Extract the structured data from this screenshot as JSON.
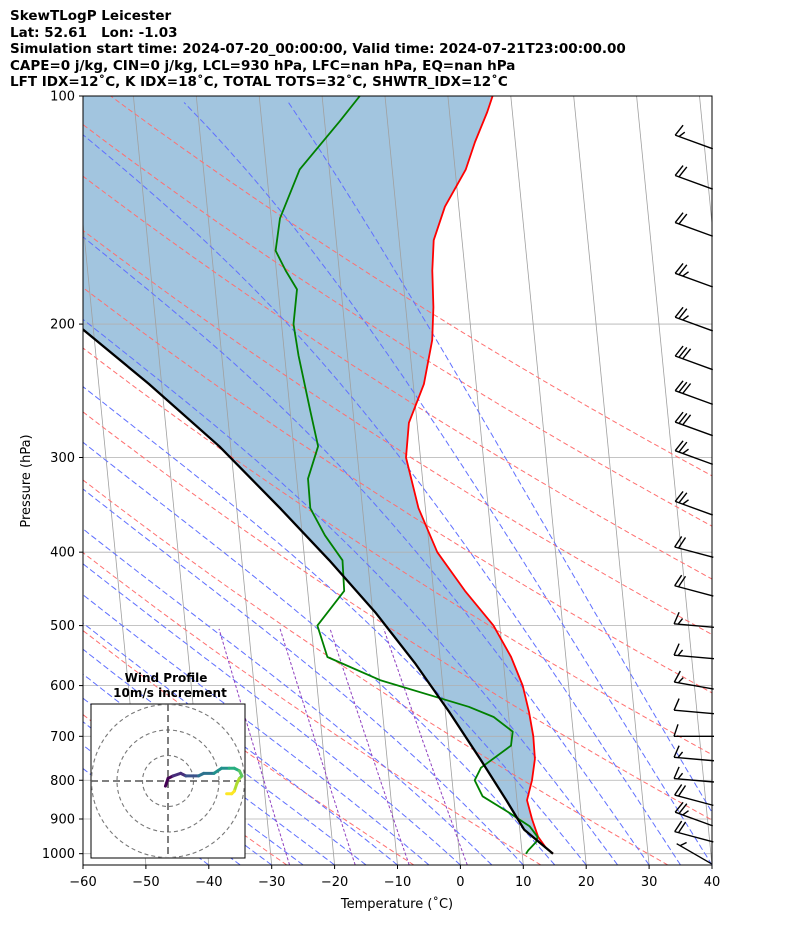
{
  "header": {
    "line1": "SkewTLogP Leicester",
    "line2": "Lat: 52.61   Lon: -1.03",
    "line3": "Simulation start time: 2024-07-20_00:00:00, Valid time: 2024-07-21T23:00:00.00",
    "line4": "CAPE=0 j/kg, CIN=0 j/kg, LCL=930 hPa, LFC=nan hPa, EQ=nan hPa",
    "line5": "LFT IDX=12˚C, K IDX=18˚C, TOTAL TOTS=32˚C, SHWTR_IDX=12˚C"
  },
  "chart_data": {
    "type": "line",
    "title": "SkewTLogP Leicester",
    "xlabel": "Temperature (˚C)",
    "ylabel": "Pressure (hPa)",
    "xlim": [
      -60,
      40
    ],
    "ylim": [
      1035,
      100
    ],
    "y_scale": "log",
    "skewed_isotherms": true,
    "grid": true,
    "x_ticks": [
      -60,
      -50,
      -40,
      -30,
      -20,
      -10,
      0,
      10,
      20,
      30,
      40
    ],
    "y_ticks": [
      100,
      200,
      300,
      400,
      500,
      600,
      700,
      800,
      900,
      1000
    ],
    "colors": {
      "temperature": "#ff0000",
      "dewpoint": "#008000",
      "parcel": "#000000",
      "cape_fill": "#a2c5df",
      "dry_adiabats": "#ff6f6f",
      "moist_adiabats": "#6070ff",
      "mixing_ratio": "#9040c0",
      "isotherms": "#a0a0a0"
    },
    "series": [
      {
        "name": "Temperature",
        "points": [
          [
            14.9,
            1000
          ],
          [
            13.8,
            980
          ],
          [
            12.8,
            950
          ],
          [
            12.1,
            900
          ],
          [
            11.6,
            850
          ],
          [
            12.7,
            800
          ],
          [
            13.5,
            750
          ],
          [
            13.6,
            700
          ],
          [
            13.3,
            650
          ],
          [
            12.7,
            600
          ],
          [
            11.3,
            550
          ],
          [
            9.0,
            500
          ],
          [
            5.0,
            450
          ],
          [
            1.2,
            400
          ],
          [
            -1.1,
            350
          ],
          [
            -2.3,
            300
          ],
          [
            -1.3,
            270
          ],
          [
            1.7,
            240
          ],
          [
            3.7,
            210
          ],
          [
            4.4,
            190
          ],
          [
            4.8,
            170
          ],
          [
            5.5,
            155
          ],
          [
            7.8,
            140
          ],
          [
            11.7,
            125
          ],
          [
            13.6,
            115
          ],
          [
            16.0,
            105
          ],
          [
            17.1,
            100
          ]
        ]
      },
      {
        "name": "Dewpoint",
        "points": [
          [
            10.6,
            1000
          ],
          [
            11.0,
            990
          ],
          [
            12.4,
            965
          ],
          [
            12.7,
            950
          ],
          [
            11.6,
            920
          ],
          [
            8.3,
            880
          ],
          [
            4.6,
            840
          ],
          [
            3.6,
            800
          ],
          [
            4.8,
            770
          ],
          [
            9.9,
            720
          ],
          [
            10.4,
            690
          ],
          [
            7.6,
            660
          ],
          [
            3.8,
            640
          ],
          [
            -9.9,
            590
          ],
          [
            -17.9,
            550
          ],
          [
            -19.0,
            500
          ],
          [
            -14.2,
            450
          ],
          [
            -14.0,
            410
          ],
          [
            -16.4,
            380
          ],
          [
            -18.3,
            350
          ],
          [
            -18.2,
            320
          ],
          [
            -16.1,
            290
          ],
          [
            -16.8,
            260
          ],
          [
            -17.8,
            220
          ],
          [
            -18.1,
            200
          ],
          [
            -17.0,
            180
          ],
          [
            -18.5,
            170
          ],
          [
            -19.8,
            160
          ],
          [
            -18.6,
            145
          ],
          [
            -14.7,
            125
          ],
          [
            -7.6,
            108
          ],
          [
            -4.0,
            100
          ]
        ]
      },
      {
        "name": "Parcel",
        "points": [
          [
            14.9,
            1000
          ],
          [
            10.7,
            930
          ],
          [
            8.3,
            850
          ],
          [
            4.8,
            750
          ],
          [
            0.6,
            650
          ],
          [
            -4.1,
            560
          ],
          [
            -9.6,
            480
          ],
          [
            -16.1,
            410
          ],
          [
            -23.1,
            350
          ],
          [
            -31.8,
            290
          ],
          [
            -42.0,
            240
          ],
          [
            -52.6,
            200
          ],
          [
            -63.7,
            165
          ],
          [
            -75.0,
            136
          ],
          [
            -86.0,
            113
          ],
          [
            -92.2,
            100
          ]
        ]
      }
    ],
    "wind_barbs": [
      {
        "p": 1000,
        "speed_kt": 5,
        "dir_deg": 300
      },
      {
        "p": 950,
        "speed_kt": 20,
        "dir_deg": 285
      },
      {
        "p": 900,
        "speed_kt": 25,
        "dir_deg": 290
      },
      {
        "p": 850,
        "speed_kt": 20,
        "dir_deg": 285
      },
      {
        "p": 800,
        "speed_kt": 15,
        "dir_deg": 275
      },
      {
        "p": 750,
        "speed_kt": 15,
        "dir_deg": 275
      },
      {
        "p": 700,
        "speed_kt": 10,
        "dir_deg": 270
      },
      {
        "p": 650,
        "speed_kt": 10,
        "dir_deg": 275
      },
      {
        "p": 600,
        "speed_kt": 15,
        "dir_deg": 280
      },
      {
        "p": 550,
        "speed_kt": 15,
        "dir_deg": 275
      },
      {
        "p": 500,
        "speed_kt": 15,
        "dir_deg": 275
      },
      {
        "p": 450,
        "speed_kt": 20,
        "dir_deg": 285
      },
      {
        "p": 400,
        "speed_kt": 20,
        "dir_deg": 285
      },
      {
        "p": 350,
        "speed_kt": 25,
        "dir_deg": 290
      },
      {
        "p": 300,
        "speed_kt": 25,
        "dir_deg": 290
      },
      {
        "p": 275,
        "speed_kt": 30,
        "dir_deg": 290
      },
      {
        "p": 250,
        "speed_kt": 30,
        "dir_deg": 290
      },
      {
        "p": 225,
        "speed_kt": 30,
        "dir_deg": 290
      },
      {
        "p": 200,
        "speed_kt": 25,
        "dir_deg": 290
      },
      {
        "p": 175,
        "speed_kt": 25,
        "dir_deg": 290
      },
      {
        "p": 150,
        "speed_kt": 20,
        "dir_deg": 290
      },
      {
        "p": 130,
        "speed_kt": 20,
        "dir_deg": 290
      },
      {
        "p": 115,
        "speed_kt": 15,
        "dir_deg": 290
      }
    ],
    "hodograph": {
      "title": "Wind Profile",
      "subtitle": "10m/s increment",
      "ring_step_ms": 10,
      "rings": 3,
      "colormap": "viridis",
      "points": [
        [
          -1,
          -2
        ],
        [
          0,
          1
        ],
        [
          2,
          2
        ],
        [
          5,
          3
        ],
        [
          7,
          2
        ],
        [
          10,
          2
        ],
        [
          12,
          2
        ],
        [
          14,
          3
        ],
        [
          18,
          3
        ],
        [
          21,
          5
        ],
        [
          24,
          5
        ],
        [
          26,
          5
        ],
        [
          28,
          4
        ],
        [
          29,
          2
        ],
        [
          28,
          1
        ],
        [
          27,
          -1
        ],
        [
          26,
          -4
        ],
        [
          25,
          -5
        ],
        [
          23,
          -5
        ]
      ]
    }
  }
}
